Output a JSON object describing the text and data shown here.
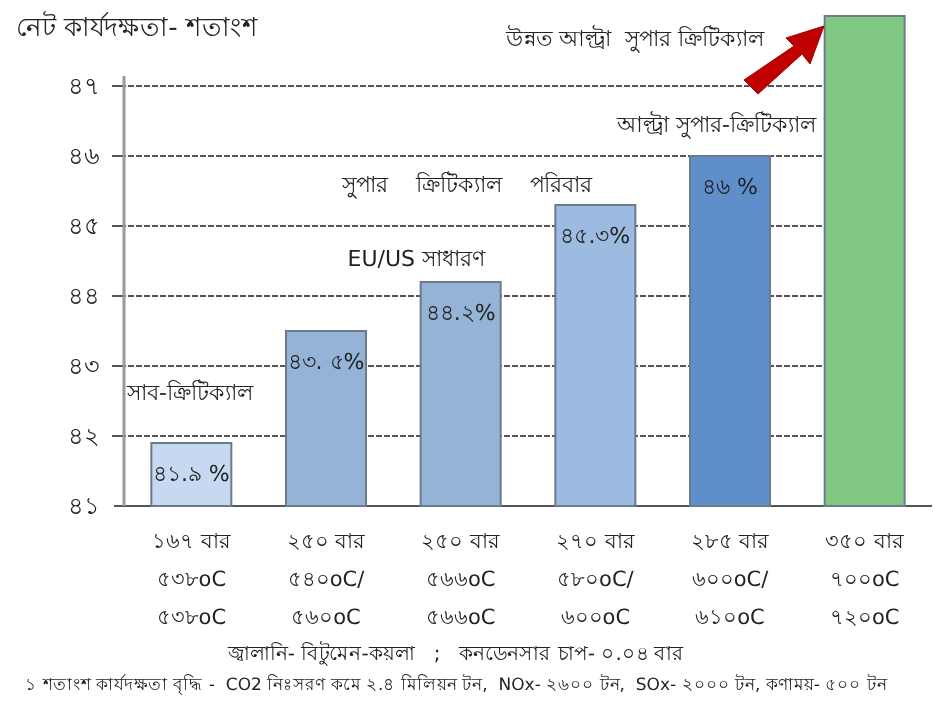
{
  "chart_data": {
    "type": "bar",
    "title": "নেট  কার্যদক্ষতা- শতাংশ",
    "categories": [
      "১৬৭ বার\n৫৩৮oC\n৫৩৮oC",
      "২৫০ বার\n৫৪০oC/\n৫৬০oC",
      "২৫০ বার\n৫৬৬oC\n৫৬৬oC",
      "২৭০ বার\n৫৮০oC/\n৬০০oC",
      "২৮৫ বার\n৬০০oC/\n৬১০oC",
      "৩৫০ বার\n৭০০oC\n৭২০oC"
    ],
    "values": [
      41.9,
      43.5,
      44.2,
      45.3,
      46,
      48
    ],
    "colors": [
      "#c6d9f0",
      "#95b3d7",
      "#95b3d7",
      "#9dbbe0",
      "#5f8fca",
      "#80c881"
    ],
    "value_labels": [
      "৪১.৯ %",
      "৪৩. ৫%",
      "৪৪.২%",
      "৪৫.৩%",
      "৪৬ %",
      null
    ],
    "ylim": [
      41,
      48
    ],
    "yticks": [
      {
        "value": 41,
        "label": "৪১"
      },
      {
        "value": 42,
        "label": "৪২"
      },
      {
        "value": 43,
        "label": "৪৩"
      },
      {
        "value": 44,
        "label": "৪৪"
      },
      {
        "value": 45,
        "label": "৪৫"
      },
      {
        "value": 46,
        "label": "৪৬"
      },
      {
        "value": 47,
        "label": "৪৭"
      }
    ],
    "grid": "y",
    "annotations": [
      "সাব-ক্রিটিক্যাল",
      "EU/US সাধারণ",
      "সুপার    ক্রিটিক্যাল    পরিবার",
      "আল্ট্রা সুপার-ক্রিটিক্যাল",
      "উন্নত আল্ট্রা  সুপার ক্রিটিক্যাল",
      "জ্বালানি- বিটুমেন-কয়লা   ;   কনডেনসার চাপ- ০.০৪ বার",
      "১ শতাংশ কার্যদক্ষতা বৃদ্ধি -  CO2 নিঃসরণ কমে ২.৪ মিলিয়ন টন,  NOx- ২৬০০ টন,  SOx- ২০০০ টন, কণাময়- ৫০০ টন"
    ]
  }
}
